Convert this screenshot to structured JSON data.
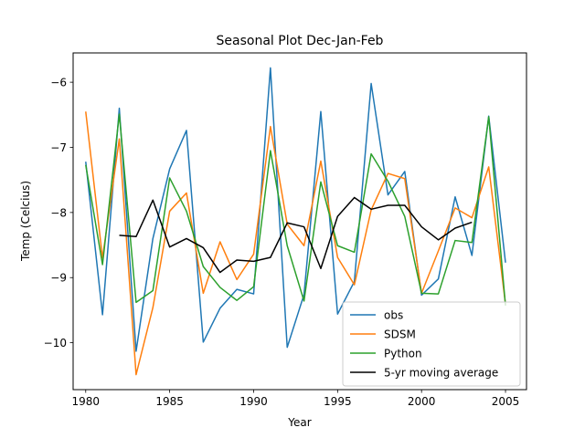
{
  "chart_data": {
    "type": "line",
    "title": "Seasonal Plot Dec-Jan-Feb",
    "xlabel": "Year",
    "ylabel": "Temp (Celcius)",
    "xlim": [
      1979.25,
      2006.25
    ],
    "ylim": [
      -10.72,
      -5.55
    ],
    "xticks": [
      1980,
      1985,
      1990,
      1995,
      2000,
      2005
    ],
    "yticks": [
      -10,
      -9,
      -8,
      -7,
      -6
    ],
    "grid": false,
    "legend_position": "bottom-right",
    "x": [
      1980,
      1981,
      1982,
      1983,
      1984,
      1985,
      1986,
      1987,
      1988,
      1989,
      1990,
      1991,
      1992,
      1993,
      1994,
      1995,
      1996,
      1997,
      1998,
      1999,
      2000,
      2001,
      2002,
      2003,
      2004,
      2005
    ],
    "series": [
      {
        "name": "obs",
        "color": "#1f77b4",
        "values": [
          -7.22,
          -9.57,
          -6.4,
          -10.13,
          -8.4,
          -7.33,
          -6.74,
          -9.99,
          -9.47,
          -9.18,
          -9.25,
          -5.78,
          -10.07,
          -9.26,
          -6.45,
          -9.56,
          -9.06,
          -6.02,
          -7.73,
          -7.37,
          -9.27,
          -9.02,
          -7.76,
          -8.66,
          -6.52,
          -8.77
        ]
      },
      {
        "name": "SDSM",
        "color": "#ff7f0e",
        "values": [
          -6.45,
          -8.7,
          -6.87,
          -10.49,
          -9.46,
          -7.98,
          -7.7,
          -9.24,
          -8.45,
          -9.03,
          -8.64,
          -6.68,
          -8.18,
          -8.51,
          -7.21,
          -8.69,
          -9.11,
          -7.96,
          -7.4,
          -7.48,
          -9.24,
          -8.59,
          -7.93,
          -8.08,
          -7.3,
          -9.41
        ]
      },
      {
        "name": "Python",
        "color": "#2ca02c",
        "values": [
          -7.27,
          -8.8,
          -6.49,
          -9.38,
          -9.2,
          -7.47,
          -7.98,
          -8.83,
          -9.15,
          -9.35,
          -9.14,
          -7.05,
          -8.51,
          -9.36,
          -7.53,
          -8.51,
          -8.61,
          -7.1,
          -7.52,
          -8.06,
          -9.24,
          -9.25,
          -8.43,
          -8.46,
          -6.53,
          -9.43
        ]
      },
      {
        "name": "5-yr moving average",
        "color": "#000000",
        "values": [
          null,
          null,
          -8.35,
          -8.37,
          -7.81,
          -8.53,
          -8.4,
          -8.54,
          -8.92,
          -8.73,
          -8.75,
          -8.69,
          -8.16,
          -8.22,
          -8.86,
          -8.06,
          -7.77,
          -7.95,
          -7.89,
          -7.89,
          -8.22,
          -8.42,
          -8.24,
          -8.15,
          null,
          null
        ]
      }
    ]
  }
}
